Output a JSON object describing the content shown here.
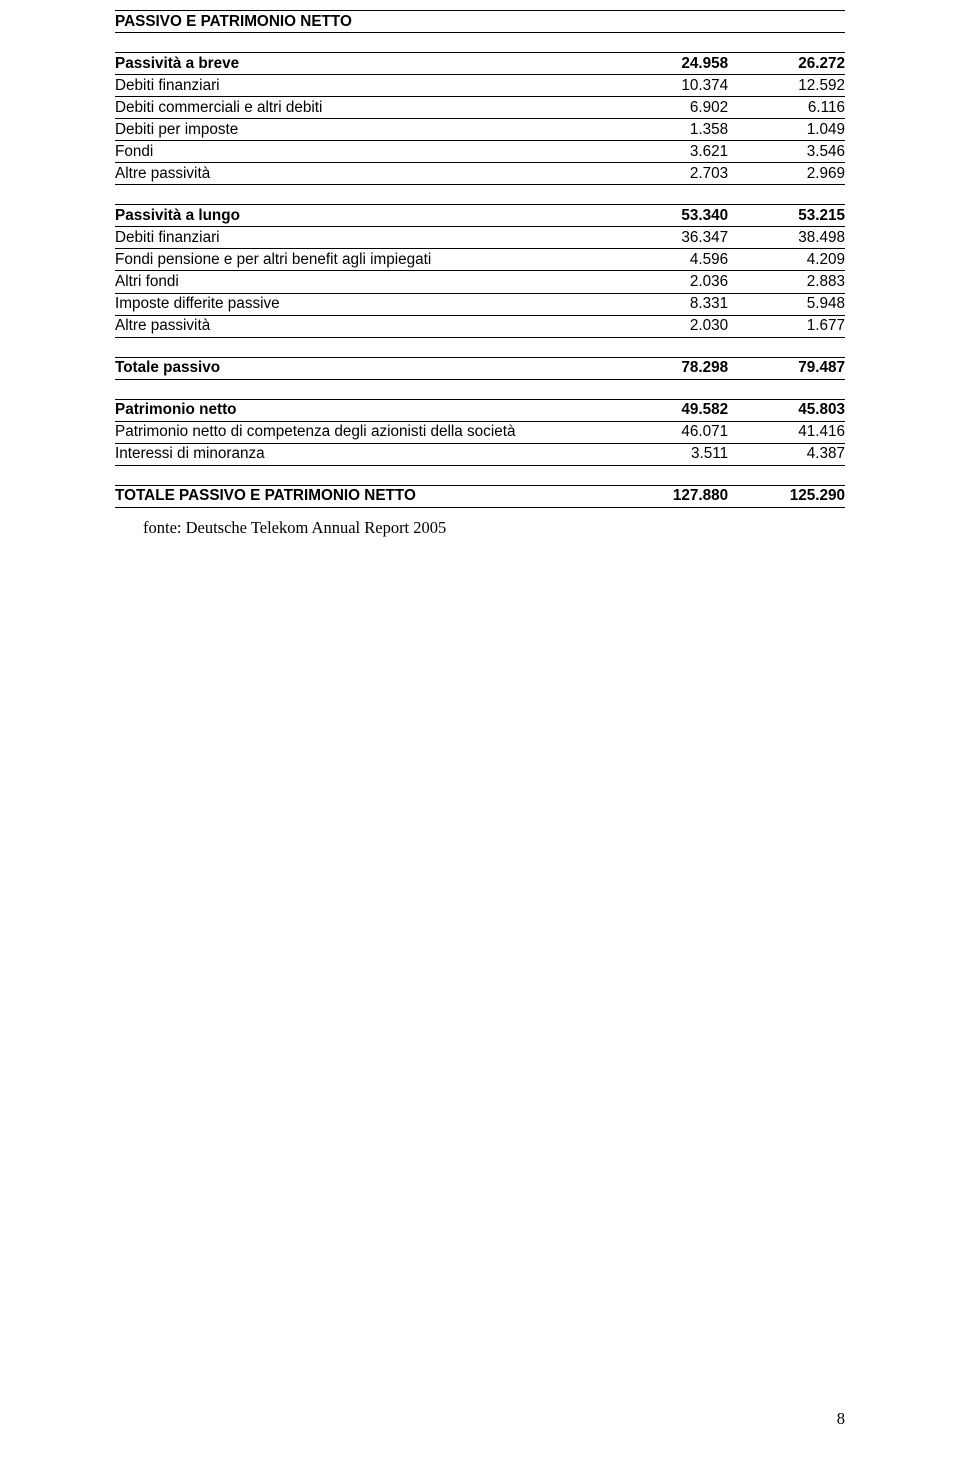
{
  "section_title": "PASSIVO E PATRIMONIO NETTO",
  "groups": [
    {
      "header": {
        "label": "Passività a breve",
        "v1": "24.958",
        "v2": "26.272"
      },
      "rows": [
        {
          "label": "Debiti finanziari",
          "v1": "10.374",
          "v2": "12.592"
        },
        {
          "label": "Debiti commerciali e altri debiti",
          "v1": "6.902",
          "v2": "6.116"
        },
        {
          "label": "Debiti per imposte",
          "v1": "1.358",
          "v2": "1.049"
        },
        {
          "label": "Fondi",
          "v1": "3.621",
          "v2": "3.546"
        },
        {
          "label": "Altre passività",
          "v1": "2.703",
          "v2": "2.969"
        }
      ]
    },
    {
      "header": {
        "label": "Passività a lungo",
        "v1": "53.340",
        "v2": "53.215"
      },
      "rows": [
        {
          "label": "Debiti finanziari",
          "v1": "36.347",
          "v2": "38.498"
        },
        {
          "label": "Fondi pensione e per altri benefit agli impiegati",
          "v1": "4.596",
          "v2": "4.209"
        },
        {
          "label": "Altri fondi",
          "v1": "2.036",
          "v2": "2.883"
        },
        {
          "label": "Imposte differite passive",
          "v1": "8.331",
          "v2": "5.948"
        },
        {
          "label": "Altre passività",
          "v1": "2.030",
          "v2": "1.677"
        }
      ]
    }
  ],
  "totale_passivo": {
    "label": "Totale passivo",
    "v1": "78.298",
    "v2": "79.487"
  },
  "patrimonio": {
    "header": {
      "label": "Patrimonio netto",
      "v1": "49.582",
      "v2": "45.803"
    },
    "rows": [
      {
        "label": "Patrimonio netto di competenza degli azionisti della società",
        "v1": "46.071",
        "v2": "41.416"
      },
      {
        "label": "Interessi di minoranza",
        "v1": "3.511",
        "v2": "4.387"
      }
    ]
  },
  "grand_total": {
    "label": "TOTALE PASSIVO E PATRIMONIO NETTO",
    "v1": "127.880",
    "v2": "125.290"
  },
  "source_line": "fonte: Deutsche Telekom Annual Report 2005",
  "page_number": "8",
  "colors": {
    "text": "#000000",
    "background": "#ffffff",
    "rule": "#000000"
  },
  "fonts": {
    "table_family": "Arial",
    "table_size_pt": 11,
    "source_family": "Times New Roman",
    "source_size_pt": 12
  }
}
